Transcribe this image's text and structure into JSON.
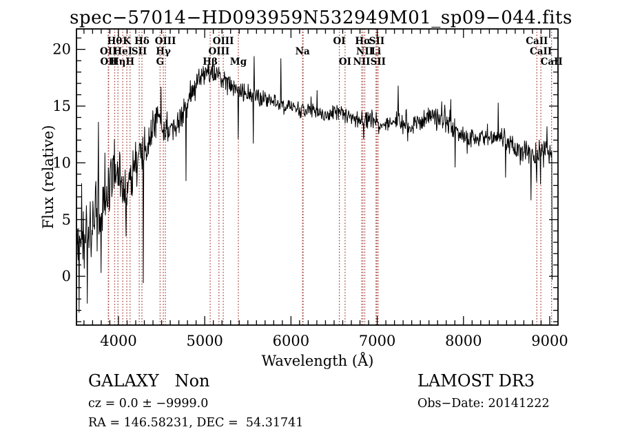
{
  "title": "spec−57014−HD093959N532949M01_sp09−044.fits",
  "footer": {
    "class_line": "GALAXY   Non",
    "cz_line": "cz = 0.0 ± −9999.0",
    "radec_line": "RA = 146.58231, DEC =  54.31741",
    "survey": "LAMOST DR3",
    "obs_date_line": "Obs−Date: 20141222"
  },
  "colors": {
    "spectrum": "#000000",
    "line_marker": "#a03a32",
    "text": "#000000",
    "background": "#ffffff"
  },
  "chart_data": {
    "type": "line",
    "title": "spec−57014−HD093959N532949M01_sp09−044.fits",
    "xlabel": "Wavelength (Å)",
    "ylabel": "Flux (relative)",
    "xlim": [
      3513,
      9096
    ],
    "ylim": [
      -4.3,
      21.8
    ],
    "xticks": [
      4000,
      5000,
      6000,
      7000,
      8000,
      9000
    ],
    "yticks": [
      0,
      5,
      10,
      15,
      20
    ],
    "x_minor_step": 100,
    "y_minor_step": 1,
    "grid": false,
    "legend": false,
    "wavelength_range": [
      3518,
      9032
    ],
    "sample_step": 5,
    "spectral_lines": [
      {
        "label": "OII",
        "row": 2,
        "wavelength": 3882
      },
      {
        "label": "OII",
        "row": 3,
        "wavelength": 3886
      },
      {
        "label": "Hθ",
        "row": 1,
        "wavelength": 3956
      },
      {
        "label": "Hη",
        "row": 3,
        "wavelength": 3994
      },
      {
        "label": "HeI",
        "row": 2,
        "wavelength": 4050
      },
      {
        "label": "K",
        "row": 1,
        "wavelength": 4097
      },
      {
        "label": "H",
        "row": 3,
        "wavelength": 4134
      },
      {
        "label": "SII",
        "row": 2,
        "wavelength": 4241
      },
      {
        "label": "Hδ",
        "row": 1,
        "wavelength": 4272
      },
      {
        "label": "G",
        "row": 3,
        "wavelength": 4483
      },
      {
        "label": "Hγ",
        "row": 2,
        "wavelength": 4520
      },
      {
        "label": "OIII",
        "row": 1,
        "wavelength": 4544
      },
      {
        "label": "Hβ",
        "row": 3,
        "wavelength": 5063
      },
      {
        "label": "OIII",
        "row": 2,
        "wavelength": 5165
      },
      {
        "label": "OIII",
        "row": 1,
        "wavelength": 5215
      },
      {
        "label": "Mg",
        "row": 3,
        "wavelength": 5390
      },
      {
        "label": "Na",
        "row": 2,
        "wavelength": 6134
      },
      {
        "label": "",
        "row": 0,
        "wavelength": 6141
      },
      {
        "label": "OI",
        "row": 1,
        "wavelength": 6561
      },
      {
        "label": "OI",
        "row": 3,
        "wavelength": 6627
      },
      {
        "label": "NII",
        "row": 3,
        "wavelength": 6820
      },
      {
        "label": "Hα",
        "row": 1,
        "wavelength": 6835
      },
      {
        "label": "NII",
        "row": 2,
        "wavelength": 6856
      },
      {
        "label": "Li",
        "row": 2,
        "wavelength": 6986
      },
      {
        "label": "SII",
        "row": 1,
        "wavelength": 6995
      },
      {
        "label": "SII",
        "row": 3,
        "wavelength": 7010
      },
      {
        "label": "CaII",
        "row": 1,
        "wavelength": 8851
      },
      {
        "label": "CaII",
        "row": 2,
        "wavelength": 8897
      },
      {
        "label": "CaII",
        "row": 3,
        "wavelength": 9022
      }
    ],
    "continuum_points": [
      [
        3518,
        2.8,
        3.0
      ],
      [
        3560,
        3.4,
        3.0
      ],
      [
        3610,
        3.2,
        2.9
      ],
      [
        3660,
        3.8,
        3.0
      ],
      [
        3710,
        4.6,
        3.0
      ],
      [
        3770,
        5.2,
        2.9
      ],
      [
        3830,
        5.8,
        2.7
      ],
      [
        3890,
        7.6,
        2.6
      ],
      [
        3945,
        9.4,
        2.4
      ],
      [
        3995,
        8.4,
        2.3
      ],
      [
        4045,
        6.9,
        2.2
      ],
      [
        4095,
        7.2,
        2.2
      ],
      [
        4145,
        9.0,
        2.1
      ],
      [
        4205,
        10.1,
        2.0
      ],
      [
        4265,
        10.6,
        1.9
      ],
      [
        4330,
        11.6,
        1.7
      ],
      [
        4400,
        13.2,
        1.5
      ],
      [
        4470,
        14.0,
        1.3
      ],
      [
        4535,
        13.0,
        1.2
      ],
      [
        4605,
        12.8,
        1.1
      ],
      [
        4685,
        13.3,
        1.1
      ],
      [
        4765,
        14.9,
        1.1
      ],
      [
        4845,
        16.3,
        1.1
      ],
      [
        4925,
        17.4,
        1.0
      ],
      [
        5005,
        18.0,
        0.9
      ],
      [
        5085,
        17.8,
        0.9
      ],
      [
        5165,
        17.4,
        0.9
      ],
      [
        5245,
        17.2,
        0.9
      ],
      [
        5325,
        16.6,
        0.9
      ],
      [
        5405,
        16.1,
        0.85
      ],
      [
        5485,
        16.2,
        0.8
      ],
      [
        5565,
        16.0,
        0.8
      ],
      [
        5645,
        15.7,
        0.75
      ],
      [
        5725,
        15.4,
        0.7
      ],
      [
        5805,
        15.3,
        0.7
      ],
      [
        5885,
        15.2,
        0.7
      ],
      [
        5965,
        15.0,
        0.65
      ],
      [
        6045,
        14.8,
        0.6
      ],
      [
        6125,
        14.6,
        0.65
      ],
      [
        6205,
        14.7,
        0.6
      ],
      [
        6285,
        14.6,
        0.6
      ],
      [
        6365,
        14.3,
        0.6
      ],
      [
        6445,
        14.2,
        0.6
      ],
      [
        6525,
        14.5,
        0.6
      ],
      [
        6605,
        14.3,
        0.6
      ],
      [
        6685,
        14.0,
        0.65
      ],
      [
        6765,
        13.9,
        0.7
      ],
      [
        6845,
        13.6,
        0.8
      ],
      [
        6925,
        13.8,
        0.7
      ],
      [
        7005,
        13.6,
        0.65
      ],
      [
        7085,
        13.5,
        0.6
      ],
      [
        7165,
        13.6,
        0.7
      ],
      [
        7245,
        13.9,
        0.8
      ],
      [
        7325,
        13.1,
        0.8
      ],
      [
        7405,
        13.2,
        0.7
      ],
      [
        7485,
        13.6,
        0.7
      ],
      [
        7565,
        14.0,
        0.7
      ],
      [
        7645,
        14.2,
        0.75
      ],
      [
        7725,
        13.9,
        0.8
      ],
      [
        7805,
        13.6,
        0.85
      ],
      [
        7885,
        13.2,
        0.9
      ],
      [
        7965,
        12.7,
        0.8
      ],
      [
        8045,
        12.3,
        0.7
      ],
      [
        8125,
        12.2,
        0.7
      ],
      [
        8205,
        12.3,
        0.75
      ],
      [
        8285,
        12.4,
        0.8
      ],
      [
        8365,
        12.3,
        0.8
      ],
      [
        8445,
        12.0,
        0.9
      ],
      [
        8525,
        11.6,
        0.95
      ],
      [
        8605,
        11.3,
        1.0
      ],
      [
        8685,
        11.1,
        1.0
      ],
      [
        8765,
        10.9,
        1.1
      ],
      [
        8845,
        10.4,
        1.2
      ],
      [
        8925,
        10.8,
        1.1
      ],
      [
        8990,
        11.0,
        1.0
      ],
      [
        9032,
        10.6,
        0.8
      ]
    ],
    "spikes": [
      [
        3545,
        -3.2
      ],
      [
        3575,
        8.2
      ],
      [
        3640,
        -2.4
      ],
      [
        3768,
        13.6
      ],
      [
        3800,
        0.3
      ],
      [
        4290,
        -0.6
      ],
      [
        4495,
        16.7
      ],
      [
        4783,
        8.4
      ],
      [
        5390,
        12.1
      ],
      [
        5562,
        11.7
      ],
      [
        5574,
        19.4
      ],
      [
        5885,
        19.2
      ],
      [
        6302,
        16.4
      ],
      [
        6845,
        12.1
      ],
      [
        7243,
        16.8
      ],
      [
        7355,
        11.9
      ],
      [
        7750,
        15.4
      ],
      [
        7853,
        15.6
      ],
      [
        7903,
        9.6
      ],
      [
        8402,
        15.3
      ],
      [
        8490,
        8.7
      ],
      [
        8660,
        9.8
      ],
      [
        8782,
        6.7
      ],
      [
        8848,
        8.3
      ],
      [
        8895,
        8.1
      ],
      [
        9027,
        5.0
      ],
      [
        9032,
        -0.3
      ]
    ]
  }
}
